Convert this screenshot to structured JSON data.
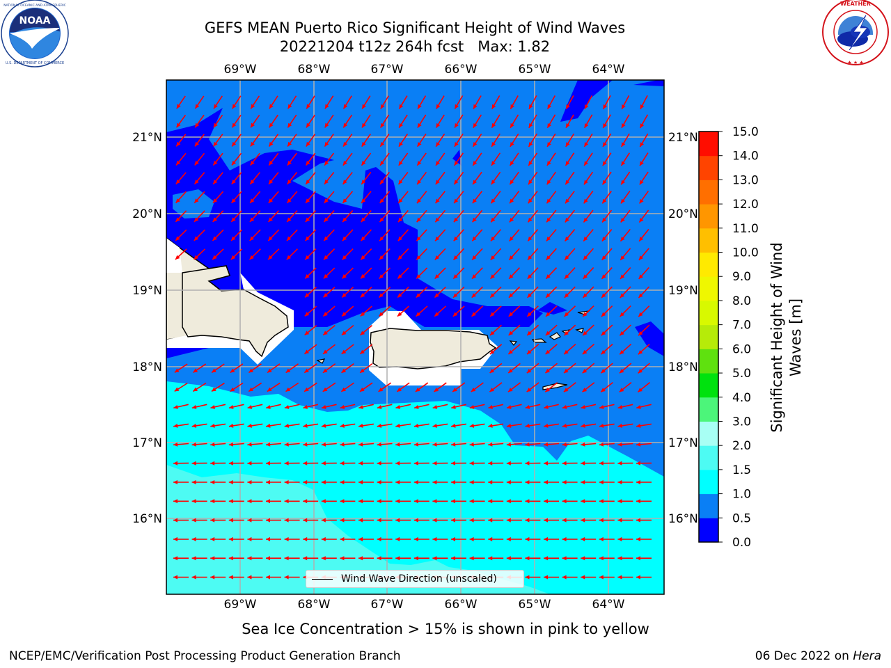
{
  "title": {
    "line1": "GEFS MEAN Puerto Rico Significant Height of Wind Waves",
    "line2": "20221204 t12z 264h fcst   Max: 1.82"
  },
  "logos": {
    "left": {
      "name": "NOAA",
      "ring_text": "NATIONAL OCEANIC AND ATMOSPHERIC ADMINISTRATION · U.S. DEPARTMENT OF COMMERCE"
    },
    "right": {
      "name": "NATIONAL WEATHER SERVICE",
      "ring_text": "NATIONAL WEATHER SERVICE"
    }
  },
  "map": {
    "lon_labels": [
      "69°W",
      "68°W",
      "67°W",
      "66°W",
      "65°W",
      "64°W"
    ],
    "lat_labels": [
      "21°N",
      "20°N",
      "19°N",
      "18°N",
      "17°N",
      "16°N"
    ],
    "legend_label": "Wind Wave Direction (unscaled)",
    "arrow_color": "#ff0000",
    "land_color": "#efebdc",
    "gridline_color": "#b0b0b0"
  },
  "colorbar": {
    "title": "Significant Height of Wind Waves [m]",
    "title_line1": "Significant Height of Wind",
    "title_line2": "Waves [m]",
    "tick_labels": [
      "0.0",
      "0.5",
      "1.0",
      "1.5",
      "2.0",
      "3.0",
      "4.0",
      "5.0",
      "6.0",
      "7.0",
      "8.0",
      "9.0",
      "10.0",
      "11.0",
      "12.0",
      "13.0",
      "14.0",
      "15.0"
    ],
    "colors": [
      "#0000ff",
      "#0a7ff5",
      "#00ffff",
      "#4dfbf3",
      "#a8fff4",
      "#4cf57a",
      "#00e20e",
      "#5fe10f",
      "#b6eb09",
      "#d8f900",
      "#eff700",
      "#ffea00",
      "#ffbf00",
      "#ff9600",
      "#ff6f00",
      "#ff4400",
      "#ff0d00"
    ]
  },
  "note": "Sea Ice Concentration > 15% is shown in pink to yellow",
  "footer": {
    "left": "NCEP/EMC/Verification Post Processing Product Generation Branch",
    "right_date": "06 Dec 2022 on ",
    "right_host": "Hera"
  }
}
